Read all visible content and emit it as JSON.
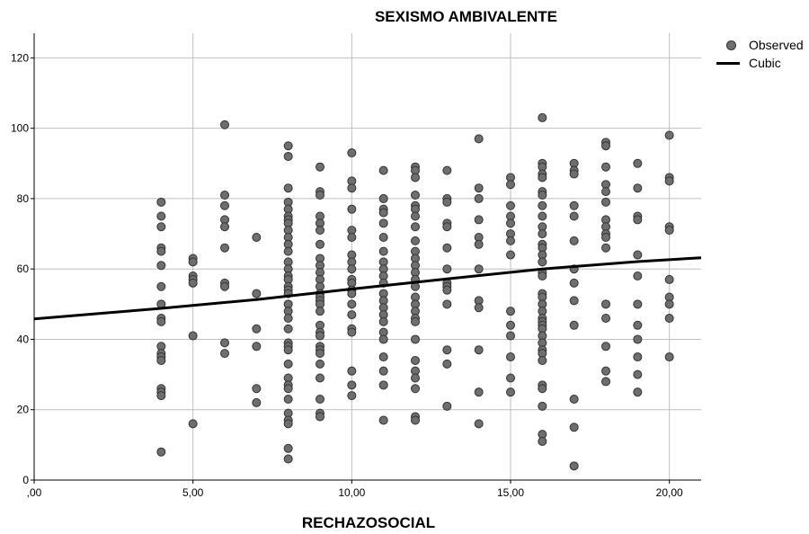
{
  "chart_data": {
    "type": "scatter",
    "title": "SEXISMO AMBIVALENTE",
    "xlabel": "RECHAZOSOCIAL",
    "ylabel": "",
    "xlim": [
      0,
      21
    ],
    "ylim": [
      0,
      127
    ],
    "x_ticks": [
      0,
      5,
      10,
      15,
      20
    ],
    "x_tick_labels": [
      ",00",
      "5,00",
      "10,00",
      "15,00",
      "20,00"
    ],
    "y_ticks": [
      0,
      20,
      40,
      60,
      80,
      100,
      120
    ],
    "y_tick_labels": [
      "0",
      "20",
      "40",
      "60",
      "80",
      "100",
      "120"
    ],
    "grid": true,
    "legend": {
      "position": "top-right",
      "entries": [
        "Observed",
        "Cubic"
      ]
    },
    "colors": {
      "points": "#6e6e6e",
      "point_edge": "#333333",
      "fit": "#000000",
      "grid": "#bfbfbf"
    },
    "series": [
      {
        "name": "Observed",
        "kind": "scatter",
        "points": [
          [
            4,
            79
          ],
          [
            4,
            75
          ],
          [
            4,
            72
          ],
          [
            4,
            66
          ],
          [
            4,
            65
          ],
          [
            4,
            61
          ],
          [
            4,
            55
          ],
          [
            4,
            50
          ],
          [
            4,
            46
          ],
          [
            4,
            45
          ],
          [
            4,
            38
          ],
          [
            4,
            36
          ],
          [
            4,
            35
          ],
          [
            4,
            34
          ],
          [
            4,
            26
          ],
          [
            4,
            25
          ],
          [
            4,
            24
          ],
          [
            4,
            8
          ],
          [
            5,
            63
          ],
          [
            5,
            62
          ],
          [
            5,
            58
          ],
          [
            5,
            57
          ],
          [
            5,
            56
          ],
          [
            5,
            41
          ],
          [
            5,
            16
          ],
          [
            6,
            101
          ],
          [
            6,
            81
          ],
          [
            6,
            78
          ],
          [
            6,
            74
          ],
          [
            6,
            72
          ],
          [
            6,
            66
          ],
          [
            6,
            56
          ],
          [
            6,
            55
          ],
          [
            6,
            39
          ],
          [
            6,
            36
          ],
          [
            7,
            69
          ],
          [
            7,
            53
          ],
          [
            7,
            43
          ],
          [
            7,
            38
          ],
          [
            7,
            26
          ],
          [
            7,
            22
          ],
          [
            8,
            95
          ],
          [
            8,
            92
          ],
          [
            8,
            83
          ],
          [
            8,
            79
          ],
          [
            8,
            77
          ],
          [
            8,
            75
          ],
          [
            8,
            74
          ],
          [
            8,
            73
          ],
          [
            8,
            71
          ],
          [
            8,
            69
          ],
          [
            8,
            67
          ],
          [
            8,
            65
          ],
          [
            8,
            62
          ],
          [
            8,
            60
          ],
          [
            8,
            58
          ],
          [
            8,
            57
          ],
          [
            8,
            55
          ],
          [
            8,
            54
          ],
          [
            8,
            53
          ],
          [
            8,
            50
          ],
          [
            8,
            48
          ],
          [
            8,
            46
          ],
          [
            8,
            43
          ],
          [
            8,
            39
          ],
          [
            8,
            38
          ],
          [
            8,
            37
          ],
          [
            8,
            33
          ],
          [
            8,
            29
          ],
          [
            8,
            27
          ],
          [
            8,
            26
          ],
          [
            8,
            23
          ],
          [
            8,
            19
          ],
          [
            8,
            17
          ],
          [
            8,
            16
          ],
          [
            8,
            9
          ],
          [
            8,
            6
          ],
          [
            9,
            89
          ],
          [
            9,
            82
          ],
          [
            9,
            81
          ],
          [
            9,
            75
          ],
          [
            9,
            73
          ],
          [
            9,
            71
          ],
          [
            9,
            67
          ],
          [
            9,
            63
          ],
          [
            9,
            61
          ],
          [
            9,
            59
          ],
          [
            9,
            57
          ],
          [
            9,
            55
          ],
          [
            9,
            53
          ],
          [
            9,
            52
          ],
          [
            9,
            51
          ],
          [
            9,
            50
          ],
          [
            9,
            48
          ],
          [
            9,
            44
          ],
          [
            9,
            42
          ],
          [
            9,
            41
          ],
          [
            9,
            38
          ],
          [
            9,
            37
          ],
          [
            9,
            36
          ],
          [
            9,
            33
          ],
          [
            9,
            29
          ],
          [
            9,
            23
          ],
          [
            9,
            19
          ],
          [
            9,
            18
          ],
          [
            10,
            93
          ],
          [
            10,
            85
          ],
          [
            10,
            83
          ],
          [
            10,
            77
          ],
          [
            10,
            71
          ],
          [
            10,
            69
          ],
          [
            10,
            64
          ],
          [
            10,
            62
          ],
          [
            10,
            60
          ],
          [
            10,
            57
          ],
          [
            10,
            56
          ],
          [
            10,
            54
          ],
          [
            10,
            53
          ],
          [
            10,
            50
          ],
          [
            10,
            47
          ],
          [
            10,
            43
          ],
          [
            10,
            42
          ],
          [
            10,
            31
          ],
          [
            10,
            27
          ],
          [
            10,
            24
          ],
          [
            11,
            88
          ],
          [
            11,
            80
          ],
          [
            11,
            77
          ],
          [
            11,
            76
          ],
          [
            11,
            73
          ],
          [
            11,
            69
          ],
          [
            11,
            65
          ],
          [
            11,
            62
          ],
          [
            11,
            60
          ],
          [
            11,
            58
          ],
          [
            11,
            56
          ],
          [
            11,
            53
          ],
          [
            11,
            51
          ],
          [
            11,
            49
          ],
          [
            11,
            47
          ],
          [
            11,
            45
          ],
          [
            11,
            42
          ],
          [
            11,
            40
          ],
          [
            11,
            35
          ],
          [
            11,
            31
          ],
          [
            11,
            27
          ],
          [
            11,
            17
          ],
          [
            12,
            89
          ],
          [
            12,
            88
          ],
          [
            12,
            86
          ],
          [
            12,
            81
          ],
          [
            12,
            78
          ],
          [
            12,
            77
          ],
          [
            12,
            75
          ],
          [
            12,
            72
          ],
          [
            12,
            68
          ],
          [
            12,
            65
          ],
          [
            12,
            63
          ],
          [
            12,
            61
          ],
          [
            12,
            59
          ],
          [
            12,
            57
          ],
          [
            12,
            55
          ],
          [
            12,
            52
          ],
          [
            12,
            50
          ],
          [
            12,
            48
          ],
          [
            12,
            46
          ],
          [
            12,
            45
          ],
          [
            12,
            40
          ],
          [
            12,
            34
          ],
          [
            12,
            31
          ],
          [
            12,
            29
          ],
          [
            12,
            26
          ],
          [
            12,
            18
          ],
          [
            12,
            17
          ],
          [
            13,
            88
          ],
          [
            13,
            80
          ],
          [
            13,
            79
          ],
          [
            13,
            73
          ],
          [
            13,
            72
          ],
          [
            13,
            66
          ],
          [
            13,
            60
          ],
          [
            13,
            56
          ],
          [
            13,
            55
          ],
          [
            13,
            54
          ],
          [
            13,
            50
          ],
          [
            13,
            37
          ],
          [
            13,
            33
          ],
          [
            13,
            21
          ],
          [
            14,
            97
          ],
          [
            14,
            83
          ],
          [
            14,
            80
          ],
          [
            14,
            74
          ],
          [
            14,
            69
          ],
          [
            14,
            67
          ],
          [
            14,
            60
          ],
          [
            14,
            51
          ],
          [
            14,
            49
          ],
          [
            14,
            37
          ],
          [
            14,
            25
          ],
          [
            14,
            16
          ],
          [
            15,
            86
          ],
          [
            15,
            84
          ],
          [
            15,
            78
          ],
          [
            15,
            75
          ],
          [
            15,
            73
          ],
          [
            15,
            70
          ],
          [
            15,
            68
          ],
          [
            15,
            64
          ],
          [
            15,
            48
          ],
          [
            15,
            44
          ],
          [
            15,
            41
          ],
          [
            15,
            35
          ],
          [
            15,
            29
          ],
          [
            15,
            25
          ],
          [
            16,
            103
          ],
          [
            16,
            90
          ],
          [
            16,
            89
          ],
          [
            16,
            87
          ],
          [
            16,
            86
          ],
          [
            16,
            82
          ],
          [
            16,
            81
          ],
          [
            16,
            78
          ],
          [
            16,
            75
          ],
          [
            16,
            72
          ],
          [
            16,
            70
          ],
          [
            16,
            67
          ],
          [
            16,
            66
          ],
          [
            16,
            64
          ],
          [
            16,
            62
          ],
          [
            16,
            59
          ],
          [
            16,
            58
          ],
          [
            16,
            53
          ],
          [
            16,
            52
          ],
          [
            16,
            50
          ],
          [
            16,
            48
          ],
          [
            16,
            46
          ],
          [
            16,
            45
          ],
          [
            16,
            44
          ],
          [
            16,
            43
          ],
          [
            16,
            41
          ],
          [
            16,
            39
          ],
          [
            16,
            37
          ],
          [
            16,
            36
          ],
          [
            16,
            34
          ],
          [
            16,
            27
          ],
          [
            16,
            26
          ],
          [
            16,
            21
          ],
          [
            16,
            13
          ],
          [
            16,
            11
          ],
          [
            17,
            90
          ],
          [
            17,
            88
          ],
          [
            17,
            87
          ],
          [
            17,
            78
          ],
          [
            17,
            75
          ],
          [
            17,
            68
          ],
          [
            17,
            60
          ],
          [
            17,
            56
          ],
          [
            17,
            51
          ],
          [
            17,
            44
          ],
          [
            17,
            23
          ],
          [
            17,
            15
          ],
          [
            17,
            4
          ],
          [
            18,
            96
          ],
          [
            18,
            95
          ],
          [
            18,
            89
          ],
          [
            18,
            84
          ],
          [
            18,
            82
          ],
          [
            18,
            79
          ],
          [
            18,
            74
          ],
          [
            18,
            72
          ],
          [
            18,
            70
          ],
          [
            18,
            69
          ],
          [
            18,
            66
          ],
          [
            18,
            50
          ],
          [
            18,
            46
          ],
          [
            18,
            38
          ],
          [
            18,
            31
          ],
          [
            18,
            28
          ],
          [
            19,
            90
          ],
          [
            19,
            83
          ],
          [
            19,
            75
          ],
          [
            19,
            74
          ],
          [
            19,
            64
          ],
          [
            19,
            58
          ],
          [
            19,
            50
          ],
          [
            19,
            44
          ],
          [
            19,
            40
          ],
          [
            19,
            35
          ],
          [
            19,
            30
          ],
          [
            19,
            25
          ],
          [
            20,
            98
          ],
          [
            20,
            86
          ],
          [
            20,
            85
          ],
          [
            20,
            72
          ],
          [
            20,
            71
          ],
          [
            20,
            57
          ],
          [
            20,
            52
          ],
          [
            20,
            50
          ],
          [
            20,
            46
          ],
          [
            20,
            35
          ]
        ]
      },
      {
        "name": "Cubic",
        "kind": "line",
        "points": [
          [
            0,
            45.8
          ],
          [
            4,
            48.8
          ],
          [
            7,
            51.3
          ],
          [
            10,
            54.3
          ],
          [
            13,
            57.2
          ],
          [
            16,
            60.0
          ],
          [
            19,
            62.1
          ],
          [
            21,
            63.2
          ]
        ]
      }
    ]
  }
}
